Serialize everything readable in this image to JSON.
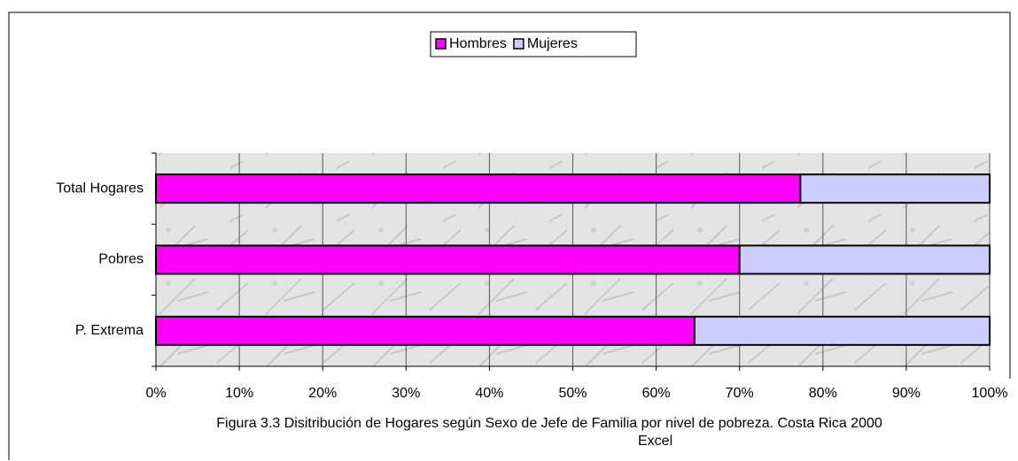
{
  "chart_data": {
    "type": "stacked_barh",
    "caption": "Figura 3.3 Disitribución de Hogares según Sexo de Jefe de Familia por nivel de pobreza. Costa Rica 2000",
    "source": "Excel",
    "categories": [
      "Total Hogares",
      "Pobres",
      "P. Extrema"
    ],
    "series": [
      {
        "name": "Hombres",
        "color": "#ff00ff",
        "values": [
          77.3,
          70,
          64.6
        ]
      },
      {
        "name": "Mujeres",
        "color": "#ccccff",
        "values": [
          22.7,
          30,
          35.4
        ]
      }
    ],
    "xlim": [
      0,
      100
    ],
    "xticks": [
      {
        "value": 0,
        "label": "0%"
      },
      {
        "value": 10,
        "label": "10%"
      },
      {
        "value": 20,
        "label": "20%"
      },
      {
        "value": 30,
        "label": "30%"
      },
      {
        "value": 40,
        "label": "40%"
      },
      {
        "value": 50,
        "label": "50%"
      },
      {
        "value": 60,
        "label": "60%"
      },
      {
        "value": 70,
        "label": "70%"
      },
      {
        "value": 80,
        "label": "80%"
      },
      {
        "value": 90,
        "label": "90%"
      },
      {
        "value": 100,
        "label": "100%"
      }
    ],
    "grid": true
  }
}
